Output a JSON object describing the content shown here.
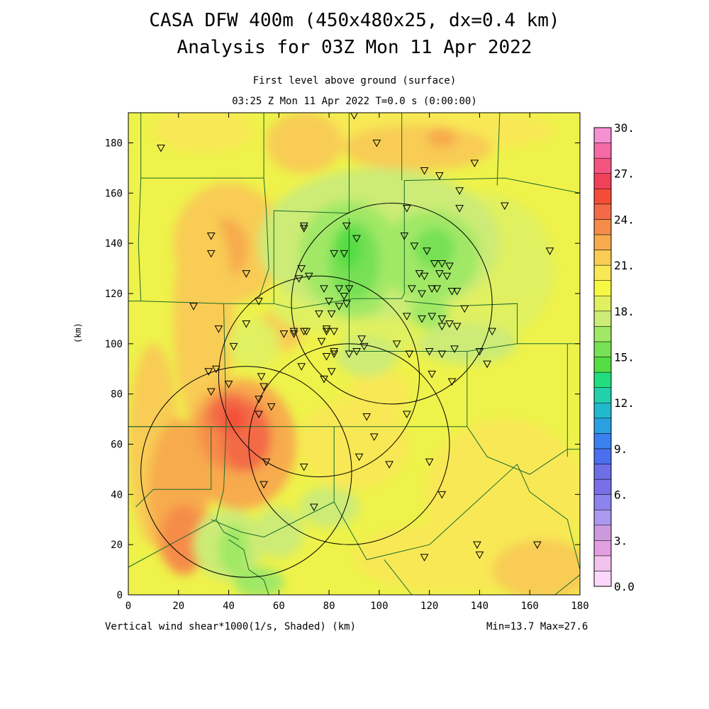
{
  "title": {
    "line1": "CASA DFW 400m (450x480x25, dx=0.4 km)",
    "line2": "Analysis for 03Z Mon 11 Apr 2022"
  },
  "subtitle": {
    "line1": "First level above ground (surface)",
    "line2": "03:25 Z Mon 11 Apr 2022    T=0.0 s (0:00:00)"
  },
  "footer": {
    "field": "Vertical wind shear*1000(1/s, Shaded)  (km)",
    "minmax": "Min=13.7 Max=27.6"
  },
  "y_axis_label": "(km)",
  "axes": {
    "x_ticks": [
      "0",
      "20",
      "40",
      "60",
      "80",
      "100",
      "120",
      "140",
      "160",
      "180"
    ],
    "y_ticks": [
      "0",
      "20",
      "40",
      "60",
      "80",
      "100",
      "120",
      "140",
      "160",
      "180"
    ],
    "x_range_km": [
      0,
      180
    ],
    "y_range_km": [
      0,
      192
    ]
  },
  "colorbar": {
    "labels": [
      "30.",
      "27.",
      "24.",
      "21.",
      "18.",
      "15.",
      "12.",
      "9.",
      "6.",
      "3.",
      "0.0"
    ],
    "colors_bottom_to_top": [
      "#fbd8fb",
      "#f2c2ef",
      "#e29ee0",
      "#cc99dd",
      "#aa99ee",
      "#8c84ec",
      "#7a6fe6",
      "#6e6fe6",
      "#4b6fee",
      "#3a80ee",
      "#2aa0e0",
      "#22b8cc",
      "#22d0aa",
      "#22dd80",
      "#55dd44",
      "#77e055",
      "#a0e866",
      "#cceb77",
      "#e0f060",
      "#f8f842",
      "#f8e855",
      "#f8cc55",
      "#f7ab4e",
      "#f58c4a",
      "#f36a47",
      "#f34d38",
      "#f0405a",
      "#f35580",
      "#f46ba6",
      "#f590d4"
    ]
  },
  "field_colors": {
    "base": "#eef24a",
    "pale": "#e0f060",
    "lightgreen": "#cceb77",
    "green": "#a0e866",
    "midgreen": "#77e055",
    "darkgreen": "#55dd44",
    "yelloworange": "#f8e855",
    "lightorange": "#f8cc55",
    "orange": "#f7ab4e",
    "darkorange": "#f58c4a",
    "red": "#f36a47",
    "deepred": "#f34d38",
    "boundary": "#1d6b2d"
  },
  "radar_rings_km": [
    {
      "cx": 47,
      "cy": 49,
      "r": 42
    },
    {
      "cx": 76,
      "cy": 87,
      "r": 40
    },
    {
      "cx": 88,
      "cy": 60,
      "r": 40
    },
    {
      "cx": 105,
      "cy": 116,
      "r": 40
    }
  ],
  "stations_km": [
    [
      13,
      178
    ],
    [
      90,
      191
    ],
    [
      99,
      180
    ],
    [
      118,
      169
    ],
    [
      124,
      167
    ],
    [
      138,
      172
    ],
    [
      132,
      161
    ],
    [
      132,
      154
    ],
    [
      150,
      155
    ],
    [
      168,
      137
    ],
    [
      33,
      143
    ],
    [
      33,
      136
    ],
    [
      47,
      128
    ],
    [
      26,
      115
    ],
    [
      36,
      106
    ],
    [
      52,
      117
    ],
    [
      47,
      108
    ],
    [
      42,
      99
    ],
    [
      35,
      90
    ],
    [
      32,
      89
    ],
    [
      33,
      81
    ],
    [
      40,
      84
    ],
    [
      53,
      87
    ],
    [
      52,
      78
    ],
    [
      54,
      83
    ],
    [
      57,
      75
    ],
    [
      52,
      72
    ],
    [
      55,
      53
    ],
    [
      54,
      44
    ],
    [
      70,
      51
    ],
    [
      74,
      35
    ],
    [
      70,
      147
    ],
    [
      70,
      146
    ],
    [
      87,
      147
    ],
    [
      82,
      136
    ],
    [
      86,
      136
    ],
    [
      91,
      142
    ],
    [
      110,
      143
    ],
    [
      111,
      154
    ],
    [
      114,
      139
    ],
    [
      119,
      137
    ],
    [
      122,
      132
    ],
    [
      125,
      132
    ],
    [
      124,
      128
    ],
    [
      128,
      131
    ],
    [
      127,
      127
    ],
    [
      116,
      128
    ],
    [
      118,
      127
    ],
    [
      121,
      122
    ],
    [
      113,
      122
    ],
    [
      117,
      120
    ],
    [
      123,
      122
    ],
    [
      129,
      121
    ],
    [
      131,
      121
    ],
    [
      134,
      114
    ],
    [
      121,
      111
    ],
    [
      117,
      110
    ],
    [
      125,
      110
    ],
    [
      125,
      107
    ],
    [
      128,
      108
    ],
    [
      131,
      107
    ],
    [
      145,
      105
    ],
    [
      69,
      130
    ],
    [
      68,
      126
    ],
    [
      72,
      127
    ],
    [
      78,
      122
    ],
    [
      84,
      122
    ],
    [
      80,
      117
    ],
    [
      86,
      119
    ],
    [
      84,
      115
    ],
    [
      87,
      116
    ],
    [
      81,
      112
    ],
    [
      88,
      122
    ],
    [
      76,
      112
    ],
    [
      62,
      104
    ],
    [
      66,
      104
    ],
    [
      66,
      105
    ],
    [
      70,
      105
    ],
    [
      71,
      105
    ],
    [
      79,
      106
    ],
    [
      79,
      105
    ],
    [
      82,
      105
    ],
    [
      77,
      101
    ],
    [
      93,
      102
    ],
    [
      94,
      99
    ],
    [
      82,
      96
    ],
    [
      82,
      97
    ],
    [
      91,
      97
    ],
    [
      88,
      96
    ],
    [
      79,
      95
    ],
    [
      107,
      100
    ],
    [
      112,
      96
    ],
    [
      120,
      97
    ],
    [
      125,
      96
    ],
    [
      130,
      98
    ],
    [
      140,
      97
    ],
    [
      143,
      92
    ],
    [
      111,
      111
    ],
    [
      69,
      91
    ],
    [
      81,
      89
    ],
    [
      78,
      86
    ],
    [
      121,
      88
    ],
    [
      129,
      85
    ],
    [
      111,
      72
    ],
    [
      95,
      71
    ],
    [
      98,
      63
    ],
    [
      92,
      55
    ],
    [
      104,
      52
    ],
    [
      120,
      53
    ],
    [
      125,
      40
    ],
    [
      118,
      15
    ],
    [
      139,
      20
    ],
    [
      140,
      16
    ],
    [
      163,
      20
    ]
  ]
}
